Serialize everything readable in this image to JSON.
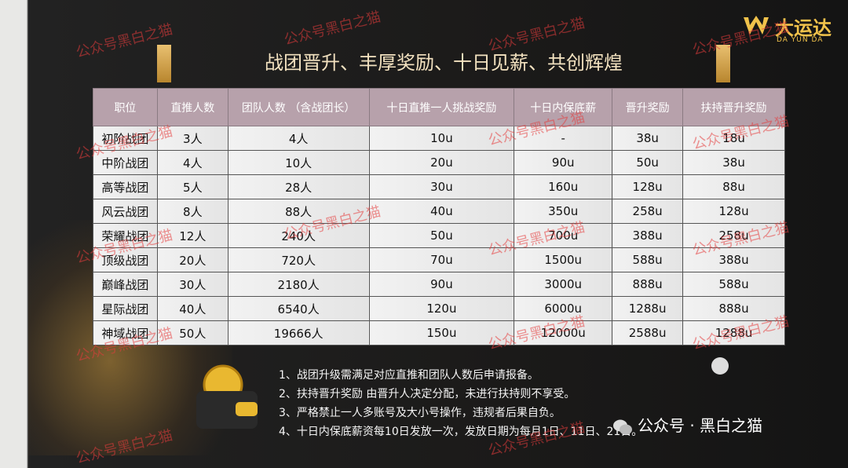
{
  "logo": {
    "name": "大运达",
    "subtitle": "DA YUN DA"
  },
  "title": "战团晋升、丰厚奖励、十日见薪、共创辉煌",
  "table": {
    "header": [
      "职位",
      "直推人数",
      "团队人数 （含战团长）",
      "十日直推一人挑战奖励",
      "十日内保底薪",
      "晋升奖励",
      "扶持晋升奖励"
    ],
    "rows": [
      [
        "初阶战团",
        "3人",
        "4人",
        "10u",
        "-",
        "38u",
        "18u"
      ],
      [
        "中阶战团",
        "4人",
        "10人",
        "20u",
        "90u",
        "50u",
        "38u"
      ],
      [
        "高等战团",
        "5人",
        "28人",
        "30u",
        "160u",
        "128u",
        "88u"
      ],
      [
        "风云战团",
        "8人",
        "88人",
        "40u",
        "350u",
        "258u",
        "128u"
      ],
      [
        "荣耀战团",
        "12人",
        "240人",
        "50u",
        "700u",
        "388u",
        "258u"
      ],
      [
        "顶级战团",
        "20人",
        "720人",
        "70u",
        "1500u",
        "588u",
        "388u"
      ],
      [
        "巅峰战团",
        "30人",
        "2180人",
        "90u",
        "3000u",
        "888u",
        "588u"
      ],
      [
        "星际战团",
        "40人",
        "6540人",
        "120u",
        "6000u",
        "1288u",
        "888u"
      ],
      [
        "神域战团",
        "50人",
        "19666人",
        "150u",
        "12000u",
        "2588u",
        "1288u"
      ]
    ]
  },
  "notes": [
    "1、战团升级需满足对应直推和团队人数后申请报备。",
    "2、扶持晋升奖励 由晋升人决定分配，未进行扶持则不享受。",
    "3、严格禁止一人多账号及大小号操作，违规者后果自负。",
    "4、十日内保底薪资每10日发放一次，发放日期为每月1日、11日、21日。"
  ],
  "watermark": "公众号黑白之猫",
  "account": "公众号 · 黑白之猫"
}
